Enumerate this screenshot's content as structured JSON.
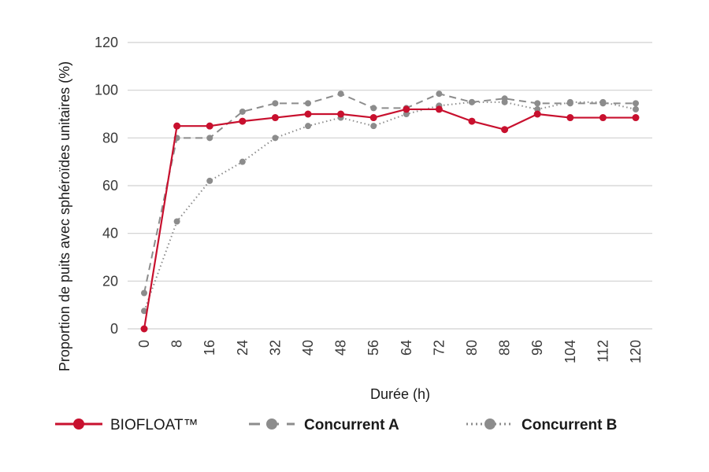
{
  "chart_data": {
    "type": "line",
    "title": "",
    "xlabel": "Durée (h)",
    "ylabel": "Proportion de puits avec sphéroïdes unitaires (%)",
    "x": [
      0,
      8,
      16,
      24,
      32,
      40,
      48,
      56,
      64,
      72,
      80,
      88,
      96,
      104,
      112,
      120
    ],
    "x_tick_labels": [
      "0",
      "8",
      "16",
      "24",
      "32",
      "40",
      "48",
      "56",
      "64",
      "72",
      "80",
      "88",
      "96",
      "104",
      "112",
      "120"
    ],
    "ylim": [
      0,
      120
    ],
    "y_ticks": [
      0,
      20,
      40,
      60,
      80,
      100,
      120
    ],
    "y_tick_labels": [
      "0",
      "20",
      "40",
      "60",
      "80",
      "100",
      "120"
    ],
    "grid": "horizontal",
    "legend_position": "bottom",
    "series": [
      {
        "name": "BIOFLOAT™",
        "color": "#c8102e",
        "style": "solid",
        "values": [
          0,
          85,
          85,
          87,
          88.5,
          90,
          90,
          88.5,
          92,
          92,
          87,
          83.5,
          90,
          88.5,
          88.5,
          88.5
        ]
      },
      {
        "name": "Concurrent A",
        "color": "#8c8c8c",
        "style": "dashed",
        "values": [
          15,
          80,
          80,
          91,
          94.5,
          94.5,
          98.5,
          92.5,
          92.5,
          98.5,
          95,
          96.5,
          94.5,
          94.5,
          94.5,
          94.5
        ]
      },
      {
        "name": "Concurrent B",
        "color": "#8c8c8c",
        "style": "dotted",
        "values": [
          7.5,
          45,
          62,
          70,
          80,
          85,
          88.5,
          85,
          90,
          93.5,
          95,
          95,
          92,
          95,
          95,
          92
        ]
      }
    ]
  }
}
